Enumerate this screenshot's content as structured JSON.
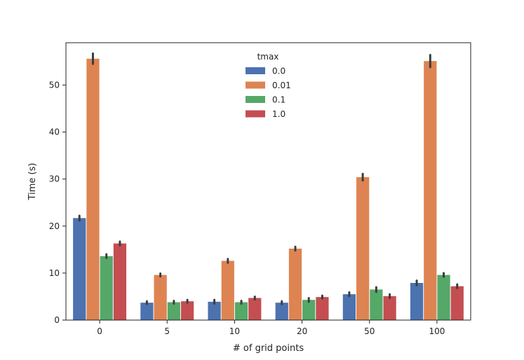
{
  "chart_data": {
    "type": "bar",
    "title": "",
    "xlabel": "# of grid points",
    "ylabel": "Time (s)",
    "categories": [
      "0",
      "5",
      "10",
      "20",
      "50",
      "100"
    ],
    "ylim": [
      0,
      59
    ],
    "yticks": [
      0,
      10,
      20,
      30,
      40,
      50
    ],
    "grid": false,
    "legend": {
      "title": "tmax",
      "placement": "top-center"
    },
    "series": [
      {
        "name": "0.0",
        "color": "#4c72b0",
        "values": [
          21.7,
          3.7,
          3.9,
          3.7,
          5.5,
          7.9
        ],
        "errors": [
          0.5,
          0.3,
          0.4,
          0.3,
          0.4,
          0.5
        ]
      },
      {
        "name": "0.01",
        "color": "#dd8452",
        "values": [
          55.6,
          9.6,
          12.6,
          15.2,
          30.4,
          55.1
        ],
        "errors": [
          1.1,
          0.3,
          0.4,
          0.4,
          0.7,
          1.3
        ]
      },
      {
        "name": "0.1",
        "color": "#55a868",
        "values": [
          13.6,
          3.8,
          3.8,
          4.3,
          6.5,
          9.6
        ],
        "errors": [
          0.4,
          0.3,
          0.3,
          0.4,
          0.5,
          0.4
        ]
      },
      {
        "name": "1.0",
        "color": "#c44e52",
        "values": [
          16.3,
          4.0,
          4.7,
          4.9,
          5.1,
          7.2
        ],
        "errors": [
          0.4,
          0.3,
          0.3,
          0.3,
          0.4,
          0.4
        ]
      }
    ]
  }
}
